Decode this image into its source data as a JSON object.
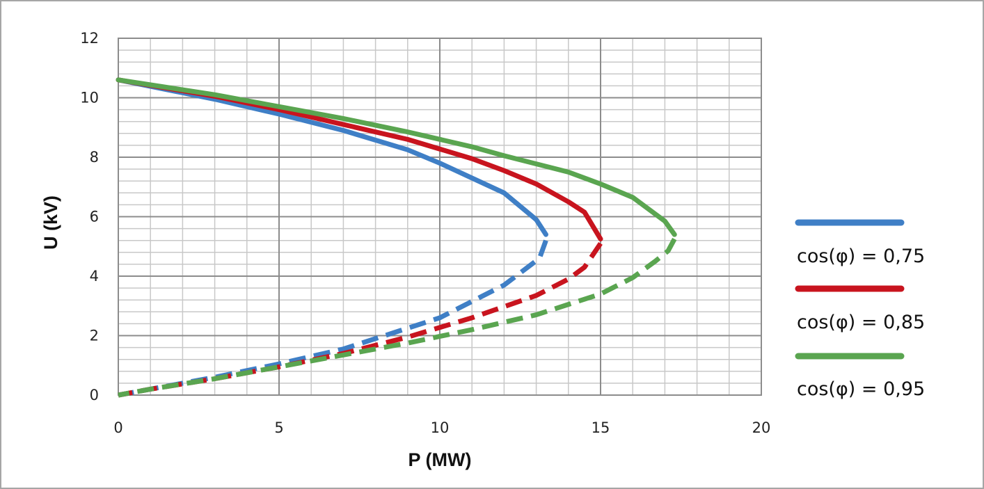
{
  "chart_data": {
    "type": "line",
    "title": "",
    "xlabel": "P (MW)",
    "ylabel": "U (kV)",
    "xlim": [
      0,
      20
    ],
    "ylim": [
      0,
      12
    ],
    "x_major_step": 5,
    "x_minor_step": 1,
    "y_major_step": 2,
    "y_minor_step": 0.4,
    "x_ticks": [
      "0",
      "5",
      "10",
      "15",
      "20"
    ],
    "y_ticks": [
      "0",
      "2",
      "4",
      "6",
      "8",
      "10",
      "12"
    ],
    "grid": true,
    "legend_position": "right",
    "series": [
      {
        "name": "cos(φ) = 0,75",
        "color": "#3f7fc6",
        "upper": {
          "x": [
            0,
            3,
            5,
            7,
            9,
            10,
            11,
            12,
            13,
            13.3
          ],
          "y": [
            10.6,
            9.95,
            9.45,
            8.9,
            8.25,
            7.8,
            7.3,
            6.8,
            5.9,
            5.4
          ]
        },
        "lower": {
          "x": [
            13.3,
            13.1,
            12,
            10,
            7,
            5,
            3,
            1,
            0
          ],
          "y": [
            5.2,
            4.6,
            3.7,
            2.6,
            1.55,
            1.05,
            0.6,
            0.2,
            0
          ]
        }
      },
      {
        "name": "cos(φ) = 0,85",
        "color": "#c8141e",
        "upper": {
          "x": [
            0,
            3,
            5,
            7,
            9,
            11,
            12,
            13,
            14,
            14.5,
            15
          ],
          "y": [
            10.6,
            10.05,
            9.6,
            9.1,
            8.6,
            7.95,
            7.55,
            7.1,
            6.5,
            6.15,
            5.25
          ]
        },
        "lower": {
          "x": [
            15,
            14.5,
            14,
            13,
            11,
            9,
            7,
            5,
            3,
            1,
            0
          ],
          "y": [
            5.1,
            4.3,
            3.9,
            3.35,
            2.6,
            1.95,
            1.4,
            0.95,
            0.55,
            0.2,
            0
          ]
        }
      },
      {
        "name": "cos(φ) = 0,95",
        "color": "#5aa550",
        "upper": {
          "x": [
            0,
            3,
            5,
            7,
            9,
            11,
            12,
            14,
            15,
            16,
            17,
            17.3
          ],
          "y": [
            10.6,
            10.1,
            9.7,
            9.3,
            8.85,
            8.35,
            8.05,
            7.5,
            7.1,
            6.65,
            5.85,
            5.4
          ]
        },
        "lower": {
          "x": [
            17.3,
            17.1,
            16.7,
            16,
            15,
            13,
            11,
            9,
            7,
            5,
            3,
            1,
            0
          ],
          "y": [
            5.25,
            4.85,
            4.5,
            3.95,
            3.4,
            2.7,
            2.2,
            1.75,
            1.35,
            0.95,
            0.55,
            0.2,
            0
          ]
        }
      }
    ]
  }
}
